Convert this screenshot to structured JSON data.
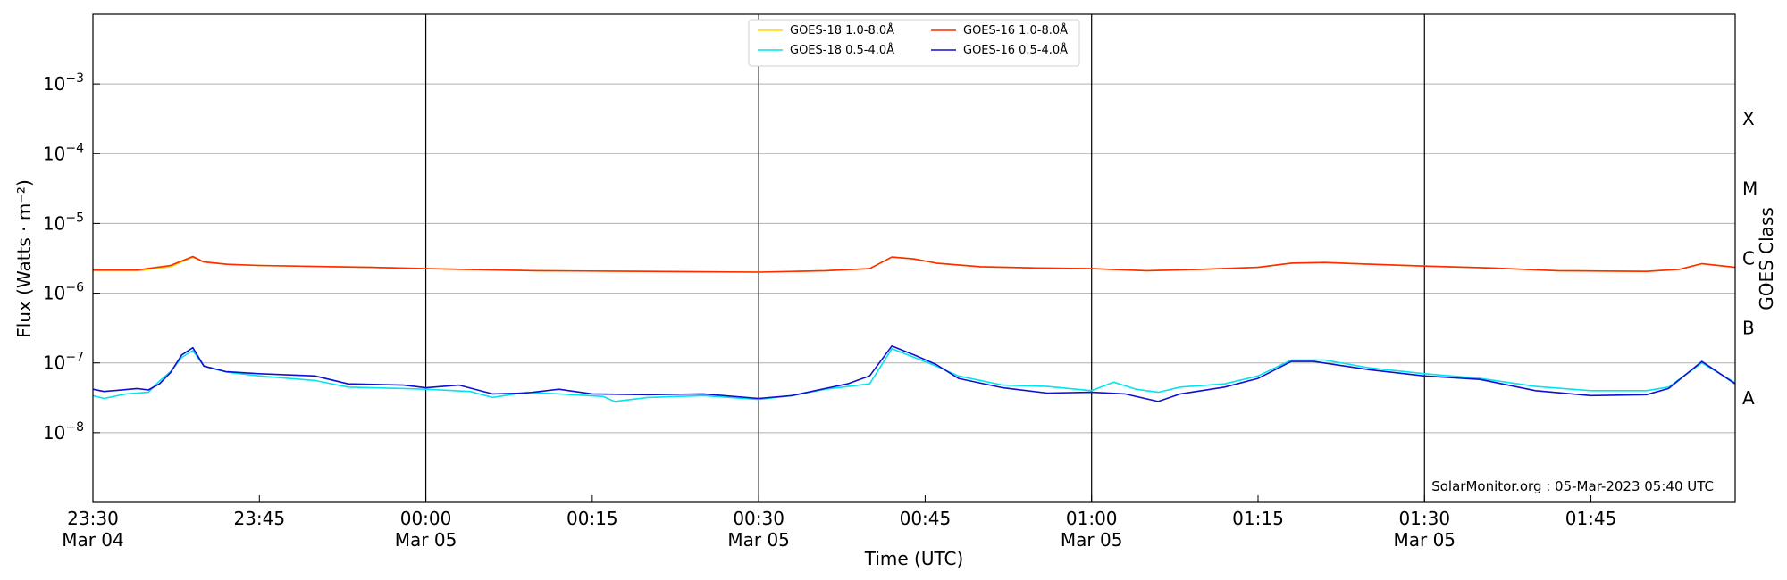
{
  "chart_data": {
    "type": "line",
    "title": "",
    "xlabel": "Time (UTC)",
    "ylabel": "Flux (Watts · m⁻²)",
    "ylabel_right": "GOES Class",
    "y_scale": "log",
    "ylim": [
      1e-09,
      0.01
    ],
    "x_range": [
      "2023-03-04 23:30",
      "2023-03-05 01:58"
    ],
    "x_ticks": [
      {
        "t": "2023-03-04 23:30",
        "line1": "23:30",
        "line2": "Mar 04"
      },
      {
        "t": "2023-03-04 23:45",
        "line1": "23:45",
        "line2": ""
      },
      {
        "t": "2023-03-05 00:00",
        "line1": "00:00",
        "line2": "Mar 05"
      },
      {
        "t": "2023-03-05 00:15",
        "line1": "00:15",
        "line2": ""
      },
      {
        "t": "2023-03-05 00:30",
        "line1": "00:30",
        "line2": "Mar 05"
      },
      {
        "t": "2023-03-05 00:45",
        "line1": "00:45",
        "line2": ""
      },
      {
        "t": "2023-03-05 01:00",
        "line1": "01:00",
        "line2": "Mar 05"
      },
      {
        "t": "2023-03-05 01:15",
        "line1": "01:15",
        "line2": ""
      },
      {
        "t": "2023-03-05 01:30",
        "line1": "01:30",
        "line2": "Mar 05"
      },
      {
        "t": "2023-03-05 01:45",
        "line1": "01:45",
        "line2": ""
      }
    ],
    "vertical_lines": [
      "2023-03-05 00:00",
      "2023-03-05 00:30",
      "2023-03-05 01:00",
      "2023-03-05 01:30"
    ],
    "y_ticks": [
      {
        "value": 1e-08,
        "base": "10",
        "exp": "−8"
      },
      {
        "value": 1e-07,
        "base": "10",
        "exp": "−7"
      },
      {
        "value": 1e-06,
        "base": "10",
        "exp": "−6"
      },
      {
        "value": 1e-05,
        "base": "10",
        "exp": "−5"
      },
      {
        "value": 0.0001,
        "base": "10",
        "exp": "−4"
      },
      {
        "value": 0.001,
        "base": "10",
        "exp": "−3"
      }
    ],
    "goes_classes": [
      {
        "label": "A",
        "value": 3.16e-08
      },
      {
        "label": "B",
        "value": 3.16e-07
      },
      {
        "label": "C",
        "value": 3.16e-06
      },
      {
        "label": "M",
        "value": 3.16e-05
      },
      {
        "label": "X",
        "value": 0.000316
      }
    ],
    "grid": true,
    "legend_position": "top-center",
    "legend_columns": 2,
    "series": [
      {
        "name": "GOES-18 1.0-8.0Å",
        "color": "#ffd700",
        "points": [
          [
            "2023-03-04 23:30",
            2.1e-06
          ],
          [
            "2023-03-04 23:34",
            2.1e-06
          ],
          [
            "2023-03-04 23:37",
            2.4e-06
          ],
          [
            "2023-03-04 23:39",
            3.3e-06
          ],
          [
            "2023-03-04 23:40",
            2.8e-06
          ],
          [
            "2023-03-04 23:42",
            2.6e-06
          ],
          [
            "2023-03-04 23:45",
            2.5e-06
          ],
          [
            "2023-03-04 23:55",
            2.35e-06
          ],
          [
            "2023-03-05 00:00",
            2.25e-06
          ],
          [
            "2023-03-05 00:10",
            2.1e-06
          ],
          [
            "2023-03-05 00:20",
            2.05e-06
          ],
          [
            "2023-03-05 00:30",
            2e-06
          ],
          [
            "2023-03-05 00:36",
            2.1e-06
          ],
          [
            "2023-03-05 00:40",
            2.25e-06
          ],
          [
            "2023-03-05 00:42",
            3.3e-06
          ],
          [
            "2023-03-05 00:44",
            3.1e-06
          ],
          [
            "2023-03-05 00:46",
            2.7e-06
          ],
          [
            "2023-03-05 00:50",
            2.4e-06
          ],
          [
            "2023-03-05 00:55",
            2.3e-06
          ],
          [
            "2023-03-05 01:00",
            2.25e-06
          ],
          [
            "2023-03-05 01:05",
            2.1e-06
          ],
          [
            "2023-03-05 01:10",
            2.2e-06
          ],
          [
            "2023-03-05 01:15",
            2.35e-06
          ],
          [
            "2023-03-05 01:18",
            2.7e-06
          ],
          [
            "2023-03-05 01:21",
            2.75e-06
          ],
          [
            "2023-03-05 01:25",
            2.6e-06
          ],
          [
            "2023-03-05 01:30",
            2.45e-06
          ],
          [
            "2023-03-05 01:36",
            2.3e-06
          ],
          [
            "2023-03-05 01:42",
            2.1e-06
          ],
          [
            "2023-03-05 01:50",
            2.05e-06
          ],
          [
            "2023-03-05 01:53",
            2.2e-06
          ],
          [
            "2023-03-05 01:55",
            2.65e-06
          ],
          [
            "2023-03-05 01:58",
            2.35e-06
          ]
        ]
      },
      {
        "name": "GOES-18 0.5-4.0Å",
        "color": "#00e5ee",
        "points": [
          [
            "2023-03-04 23:30",
            3.4e-08
          ],
          [
            "2023-03-04 23:31",
            3.1e-08
          ],
          [
            "2023-03-04 23:33",
            3.6e-08
          ],
          [
            "2023-03-04 23:35",
            3.8e-08
          ],
          [
            "2023-03-04 23:36",
            5.5e-08
          ],
          [
            "2023-03-04 23:37",
            7.5e-08
          ],
          [
            "2023-03-04 23:38",
            1.2e-07
          ],
          [
            "2023-03-04 23:39",
            1.5e-07
          ],
          [
            "2023-03-04 23:40",
            9e-08
          ],
          [
            "2023-03-04 23:42",
            7.4e-08
          ],
          [
            "2023-03-04 23:45",
            6.5e-08
          ],
          [
            "2023-03-04 23:50",
            5.6e-08
          ],
          [
            "2023-03-04 23:53",
            4.5e-08
          ],
          [
            "2023-03-04 23:58",
            4.3e-08
          ],
          [
            "2023-03-05 00:00",
            4.2e-08
          ],
          [
            "2023-03-05 00:04",
            3.9e-08
          ],
          [
            "2023-03-05 00:06",
            3.2e-08
          ],
          [
            "2023-03-05 00:09",
            3.8e-08
          ],
          [
            "2023-03-05 00:12",
            3.6e-08
          ],
          [
            "2023-03-05 00:16",
            3.3e-08
          ],
          [
            "2023-03-05 00:17",
            2.8e-08
          ],
          [
            "2023-03-05 00:20",
            3.2e-08
          ],
          [
            "2023-03-05 00:25",
            3.4e-08
          ],
          [
            "2023-03-05 00:30",
            3e-08
          ],
          [
            "2023-03-05 00:33",
            3.4e-08
          ],
          [
            "2023-03-05 00:36",
            4.2e-08
          ],
          [
            "2023-03-05 00:40",
            5e-08
          ],
          [
            "2023-03-05 00:42",
            1.6e-07
          ],
          [
            "2023-03-05 00:44",
            1.2e-07
          ],
          [
            "2023-03-05 00:46",
            9e-08
          ],
          [
            "2023-03-05 00:48",
            6.5e-08
          ],
          [
            "2023-03-05 00:52",
            4.8e-08
          ],
          [
            "2023-03-05 00:56",
            4.6e-08
          ],
          [
            "2023-03-05 01:00",
            4e-08
          ],
          [
            "2023-03-05 01:02",
            5.3e-08
          ],
          [
            "2023-03-05 01:04",
            4.2e-08
          ],
          [
            "2023-03-05 01:06",
            3.8e-08
          ],
          [
            "2023-03-05 01:08",
            4.5e-08
          ],
          [
            "2023-03-05 01:12",
            5e-08
          ],
          [
            "2023-03-05 01:15",
            6.5e-08
          ],
          [
            "2023-03-05 01:18",
            1.1e-07
          ],
          [
            "2023-03-05 01:21",
            1.1e-07
          ],
          [
            "2023-03-05 01:25",
            8.5e-08
          ],
          [
            "2023-03-05 01:30",
            7e-08
          ],
          [
            "2023-03-05 01:35",
            6e-08
          ],
          [
            "2023-03-05 01:40",
            4.6e-08
          ],
          [
            "2023-03-05 01:45",
            4e-08
          ],
          [
            "2023-03-05 01:50",
            4e-08
          ],
          [
            "2023-03-05 01:52",
            4.5e-08
          ],
          [
            "2023-03-05 01:55",
            1e-07
          ],
          [
            "2023-03-05 01:58",
            5.2e-08
          ]
        ]
      },
      {
        "name": "GOES-16 1.0-8.0Å",
        "color": "#ff2a00",
        "points": [
          [
            "2023-03-04 23:30",
            2.15e-06
          ],
          [
            "2023-03-04 23:34",
            2.15e-06
          ],
          [
            "2023-03-04 23:37",
            2.5e-06
          ],
          [
            "2023-03-04 23:39",
            3.35e-06
          ],
          [
            "2023-03-04 23:40",
            2.8e-06
          ],
          [
            "2023-03-04 23:42",
            2.6e-06
          ],
          [
            "2023-03-04 23:45",
            2.5e-06
          ],
          [
            "2023-03-04 23:55",
            2.35e-06
          ],
          [
            "2023-03-05 00:00",
            2.25e-06
          ],
          [
            "2023-03-05 00:10",
            2.1e-06
          ],
          [
            "2023-03-05 00:20",
            2.05e-06
          ],
          [
            "2023-03-05 00:30",
            2e-06
          ],
          [
            "2023-03-05 00:36",
            2.1e-06
          ],
          [
            "2023-03-05 00:40",
            2.25e-06
          ],
          [
            "2023-03-05 00:42",
            3.3e-06
          ],
          [
            "2023-03-05 00:44",
            3.1e-06
          ],
          [
            "2023-03-05 00:46",
            2.7e-06
          ],
          [
            "2023-03-05 00:50",
            2.4e-06
          ],
          [
            "2023-03-05 00:55",
            2.3e-06
          ],
          [
            "2023-03-05 01:00",
            2.25e-06
          ],
          [
            "2023-03-05 01:05",
            2.1e-06
          ],
          [
            "2023-03-05 01:10",
            2.2e-06
          ],
          [
            "2023-03-05 01:15",
            2.35e-06
          ],
          [
            "2023-03-05 01:18",
            2.7e-06
          ],
          [
            "2023-03-05 01:21",
            2.75e-06
          ],
          [
            "2023-03-05 01:25",
            2.6e-06
          ],
          [
            "2023-03-05 01:30",
            2.45e-06
          ],
          [
            "2023-03-05 01:36",
            2.3e-06
          ],
          [
            "2023-03-05 01:42",
            2.1e-06
          ],
          [
            "2023-03-05 01:50",
            2.05e-06
          ],
          [
            "2023-03-05 01:53",
            2.2e-06
          ],
          [
            "2023-03-05 01:55",
            2.65e-06
          ],
          [
            "2023-03-05 01:58",
            2.35e-06
          ]
        ]
      },
      {
        "name": "GOES-16 0.5-4.0Å",
        "color": "#1010d0",
        "points": [
          [
            "2023-03-04 23:30",
            4.2e-08
          ],
          [
            "2023-03-04 23:31",
            3.9e-08
          ],
          [
            "2023-03-04 23:34",
            4.3e-08
          ],
          [
            "2023-03-04 23:35",
            4.1e-08
          ],
          [
            "2023-03-04 23:36",
            5e-08
          ],
          [
            "2023-03-04 23:37",
            7.3e-08
          ],
          [
            "2023-03-04 23:38",
            1.3e-07
          ],
          [
            "2023-03-04 23:39",
            1.65e-07
          ],
          [
            "2023-03-04 23:40",
            9e-08
          ],
          [
            "2023-03-04 23:42",
            7.5e-08
          ],
          [
            "2023-03-04 23:45",
            7e-08
          ],
          [
            "2023-03-04 23:50",
            6.5e-08
          ],
          [
            "2023-03-04 23:53",
            5e-08
          ],
          [
            "2023-03-04 23:58",
            4.8e-08
          ],
          [
            "2023-03-05 00:00",
            4.4e-08
          ],
          [
            "2023-03-05 00:03",
            4.8e-08
          ],
          [
            "2023-03-05 00:06",
            3.6e-08
          ],
          [
            "2023-03-05 00:09",
            3.7e-08
          ],
          [
            "2023-03-05 00:12",
            4.2e-08
          ],
          [
            "2023-03-05 00:15",
            3.6e-08
          ],
          [
            "2023-03-05 00:20",
            3.5e-08
          ],
          [
            "2023-03-05 00:25",
            3.6e-08
          ],
          [
            "2023-03-05 00:30",
            3.1e-08
          ],
          [
            "2023-03-05 00:33",
            3.4e-08
          ],
          [
            "2023-03-05 00:36",
            4.3e-08
          ],
          [
            "2023-03-05 00:38",
            5e-08
          ],
          [
            "2023-03-05 00:40",
            6.5e-08
          ],
          [
            "2023-03-05 00:42",
            1.75e-07
          ],
          [
            "2023-03-05 00:44",
            1.3e-07
          ],
          [
            "2023-03-05 00:46",
            9.5e-08
          ],
          [
            "2023-03-05 00:48",
            6e-08
          ],
          [
            "2023-03-05 00:52",
            4.4e-08
          ],
          [
            "2023-03-05 00:56",
            3.7e-08
          ],
          [
            "2023-03-05 01:00",
            3.8e-08
          ],
          [
            "2023-03-05 01:03",
            3.6e-08
          ],
          [
            "2023-03-05 01:06",
            2.8e-08
          ],
          [
            "2023-03-05 01:08",
            3.6e-08
          ],
          [
            "2023-03-05 01:12",
            4.5e-08
          ],
          [
            "2023-03-05 01:15",
            6e-08
          ],
          [
            "2023-03-05 01:18",
            1.05e-07
          ],
          [
            "2023-03-05 01:20",
            1.05e-07
          ],
          [
            "2023-03-05 01:25",
            8e-08
          ],
          [
            "2023-03-05 01:30",
            6.5e-08
          ],
          [
            "2023-03-05 01:35",
            5.8e-08
          ],
          [
            "2023-03-05 01:40",
            4e-08
          ],
          [
            "2023-03-05 01:45",
            3.4e-08
          ],
          [
            "2023-03-05 01:50",
            3.5e-08
          ],
          [
            "2023-03-05 01:52",
            4.3e-08
          ],
          [
            "2023-03-05 01:55",
            1.05e-07
          ],
          [
            "2023-03-05 01:58",
            5e-08
          ]
        ]
      }
    ],
    "annotation": "SolarMonitor.org : 05-Mar-2023 05:40 UTC"
  }
}
